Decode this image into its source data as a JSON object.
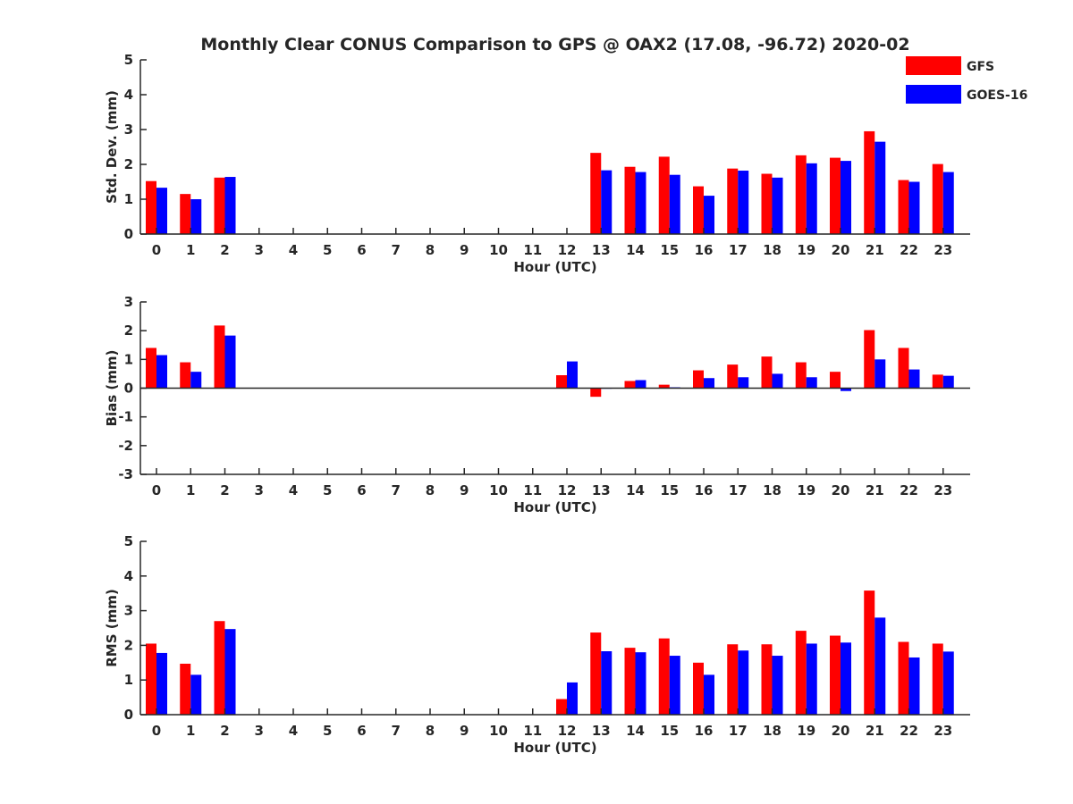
{
  "title": "Monthly Clear CONUS Comparison to GPS @ OAX2 (17.08, -96.72) 2020-02",
  "colors": {
    "GFS": "#ff0000",
    "GOES-16": "#0000ff",
    "axis": "#262626"
  },
  "legend": {
    "placement": "top-right",
    "items": [
      "GFS",
      "GOES-16"
    ]
  },
  "chart_data": [
    {
      "type": "bar",
      "xlabel": "Hour (UTC)",
      "ylabel": "Std. Dev. (mm)",
      "ylim": [
        0,
        5
      ],
      "yticks": [
        0,
        1,
        2,
        3,
        4,
        5
      ],
      "categories": [
        0,
        1,
        2,
        3,
        4,
        5,
        6,
        7,
        8,
        9,
        10,
        11,
        12,
        13,
        14,
        15,
        16,
        17,
        18,
        19,
        20,
        21,
        22,
        23
      ],
      "series": [
        {
          "name": "GFS",
          "values": [
            1.52,
            1.15,
            1.62,
            null,
            null,
            null,
            null,
            null,
            null,
            null,
            null,
            null,
            null,
            2.33,
            1.93,
            2.22,
            1.37,
            1.88,
            1.73,
            2.26,
            2.19,
            2.95,
            1.55,
            2.01
          ]
        },
        {
          "name": "GOES-16",
          "values": [
            1.33,
            1.0,
            1.64,
            null,
            null,
            null,
            null,
            null,
            null,
            null,
            null,
            null,
            null,
            1.83,
            1.78,
            1.7,
            1.1,
            1.82,
            1.62,
            2.03,
            2.1,
            2.65,
            1.5,
            1.78
          ]
        }
      ]
    },
    {
      "type": "bar",
      "xlabel": "Hour (UTC)",
      "ylabel": "Bias (mm)",
      "ylim": [
        -3,
        3
      ],
      "yticks": [
        -3,
        -2,
        -1,
        0,
        1,
        2,
        3
      ],
      "categories": [
        0,
        1,
        2,
        3,
        4,
        5,
        6,
        7,
        8,
        9,
        10,
        11,
        12,
        13,
        14,
        15,
        16,
        17,
        18,
        19,
        20,
        21,
        22,
        23
      ],
      "series": [
        {
          "name": "GFS",
          "values": [
            1.4,
            0.9,
            2.18,
            null,
            null,
            null,
            null,
            null,
            null,
            null,
            null,
            null,
            0.45,
            -0.3,
            0.25,
            0.12,
            0.62,
            0.82,
            1.1,
            0.9,
            0.57,
            2.02,
            1.4,
            0.47
          ]
        },
        {
          "name": "GOES-16",
          "values": [
            1.15,
            0.57,
            1.83,
            null,
            null,
            null,
            null,
            null,
            null,
            null,
            null,
            null,
            0.93,
            -0.02,
            0.28,
            0.03,
            0.35,
            0.38,
            0.5,
            0.38,
            -0.1,
            1.0,
            0.65,
            0.43
          ]
        }
      ]
    },
    {
      "type": "bar",
      "xlabel": "Hour (UTC)",
      "ylabel": "RMS (mm)",
      "ylim": [
        0,
        5
      ],
      "yticks": [
        0,
        1,
        2,
        3,
        4,
        5
      ],
      "categories": [
        0,
        1,
        2,
        3,
        4,
        5,
        6,
        7,
        8,
        9,
        10,
        11,
        12,
        13,
        14,
        15,
        16,
        17,
        18,
        19,
        20,
        21,
        22,
        23
      ],
      "series": [
        {
          "name": "GFS",
          "values": [
            2.05,
            1.47,
            2.7,
            null,
            null,
            null,
            null,
            null,
            null,
            null,
            null,
            null,
            0.45,
            2.37,
            1.93,
            2.2,
            1.5,
            2.03,
            2.03,
            2.42,
            2.28,
            3.58,
            2.1,
            2.05
          ]
        },
        {
          "name": "GOES-16",
          "values": [
            1.78,
            1.15,
            2.47,
            null,
            null,
            null,
            null,
            null,
            null,
            null,
            null,
            null,
            0.93,
            1.83,
            1.8,
            1.7,
            1.15,
            1.85,
            1.7,
            2.05,
            2.08,
            2.8,
            1.65,
            1.82
          ]
        }
      ]
    }
  ]
}
